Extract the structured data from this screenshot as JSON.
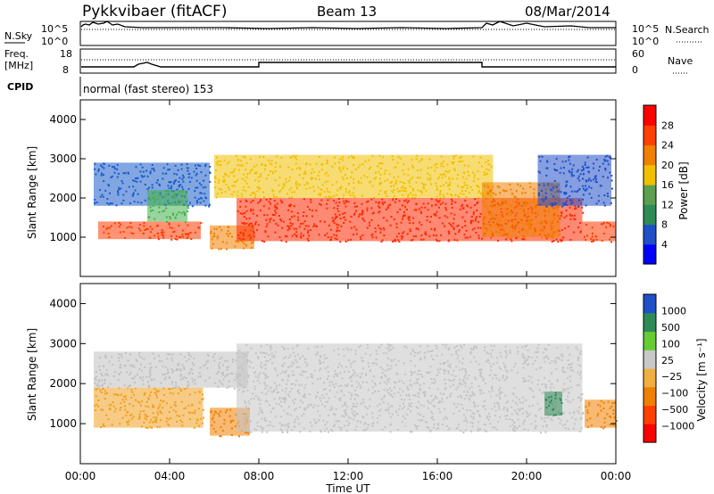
{
  "header": {
    "station": "Pykkvibaer (fitACF)",
    "beam": "Beam 13",
    "date": "08/Mar/2014"
  },
  "top_panels": {
    "nsky_label": "N.Sky",
    "nsky_ticks": [
      "10^5",
      "10^0"
    ],
    "nsearch_label": "N.Search",
    "nsearch_ticks": [
      "10^5",
      "10^0"
    ],
    "freq_label": "Freq.",
    "freq_unit": "[MHz]",
    "freq_ticks": [
      "18",
      "8"
    ],
    "nave_label": "Nave",
    "nave_ticks": [
      "60",
      "0"
    ],
    "cpid_label": "CPID",
    "cpid_text": "normal (fast stereo) 153"
  },
  "chart_data": [
    {
      "type": "heatmap",
      "name": "power",
      "ylabel": "Slant Range [km]",
      "ylim": [
        0,
        4500
      ],
      "yticks": [
        1000,
        2000,
        3000,
        4000
      ],
      "xlim": [
        0,
        24
      ],
      "colorbar_label": "Power [dB]",
      "colorbar_ticks": [
        "28",
        "24",
        "20",
        "16",
        "12",
        "8",
        "4"
      ],
      "colorbar_colors": [
        "#0000ff",
        "#2050c8",
        "#2e8b57",
        "#5aa050",
        "#f0c000",
        "#f08000",
        "#ff4000",
        "#ff0000"
      ],
      "bands": [
        {
          "t0": 0.6,
          "t1": 5.8,
          "r0": 1800,
          "r1": 2900,
          "color": "#1c5cc8"
        },
        {
          "t0": 0.8,
          "t1": 5.4,
          "r0": 950,
          "r1": 1400,
          "color": "#ff3a00"
        },
        {
          "t0": 3.0,
          "t1": 4.8,
          "r0": 1400,
          "r1": 2200,
          "color": "#44b04c"
        },
        {
          "t0": 5.8,
          "t1": 7.8,
          "r0": 700,
          "r1": 1300,
          "color": "#f08000"
        },
        {
          "t0": 6.0,
          "t1": 18.5,
          "r0": 2000,
          "r1": 3100,
          "color": "#f0c000"
        },
        {
          "t0": 7.0,
          "t1": 22.5,
          "r0": 900,
          "r1": 2000,
          "color": "#ff2800"
        },
        {
          "t0": 18.0,
          "t1": 21.5,
          "r0": 1000,
          "r1": 2400,
          "color": "#f08000"
        },
        {
          "t0": 20.5,
          "t1": 23.8,
          "r0": 1800,
          "r1": 3100,
          "color": "#2050c8"
        },
        {
          "t0": 22.5,
          "t1": 24.0,
          "r0": 900,
          "r1": 1400,
          "color": "#ff3a00"
        }
      ]
    },
    {
      "type": "heatmap",
      "name": "velocity",
      "ylabel": "Slant Range [km]",
      "ylim": [
        0,
        4500
      ],
      "yticks": [
        1000,
        2000,
        3000,
        4000
      ],
      "xlim": [
        0,
        24
      ],
      "xticks": [
        "00:00",
        "04:00",
        "08:00",
        "12:00",
        "16:00",
        "20:00",
        "00:00"
      ],
      "xlabel": "Time UT",
      "colorbar_label": "Velocity [m s⁻¹]",
      "colorbar_ticks": [
        "1000",
        "500",
        "100",
        "25",
        "−25",
        "−100",
        "−500",
        "−1000"
      ],
      "colorbar_colors": [
        "#ff0000",
        "#ff4000",
        "#f08000",
        "#f0b040",
        "#c8c8c8",
        "#66cc33",
        "#2e8b57",
        "#2050c8"
      ],
      "bands": [
        {
          "t0": 0.6,
          "t1": 7.5,
          "r0": 1900,
          "r1": 2800,
          "color": "#c0c0c0"
        },
        {
          "t0": 0.6,
          "t1": 5.5,
          "r0": 900,
          "r1": 1900,
          "color": "#f0a020"
        },
        {
          "t0": 5.8,
          "t1": 7.6,
          "r0": 700,
          "r1": 1400,
          "color": "#f08000"
        },
        {
          "t0": 7.0,
          "t1": 22.5,
          "r0": 800,
          "r1": 3000,
          "color": "#c4c4c4"
        },
        {
          "t0": 20.8,
          "t1": 21.6,
          "r0": 1200,
          "r1": 1800,
          "color": "#2e8b57"
        },
        {
          "t0": 22.6,
          "t1": 24.0,
          "r0": 900,
          "r1": 1600,
          "color": "#f08000"
        }
      ]
    }
  ]
}
